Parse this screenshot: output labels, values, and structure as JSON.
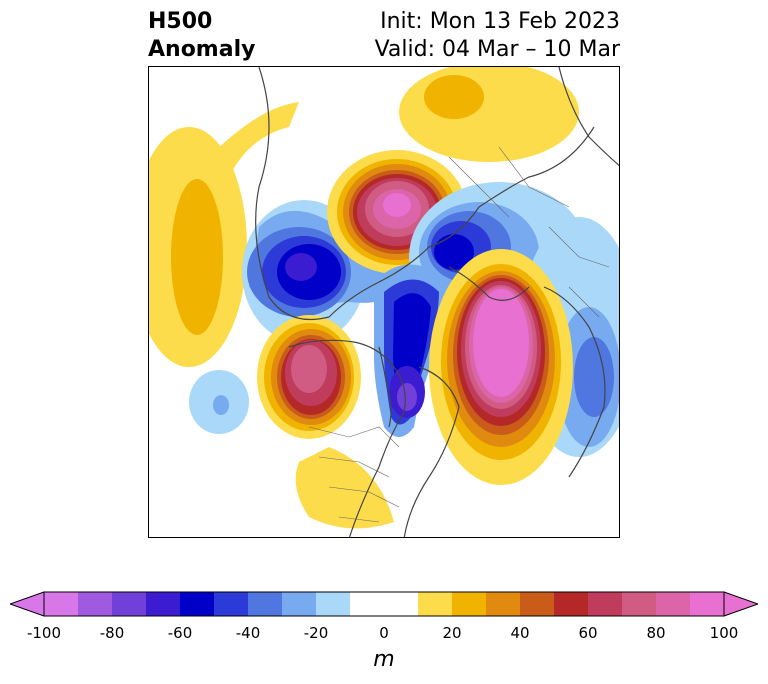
{
  "title": {
    "line1": "H500",
    "line2": "Anomaly"
  },
  "init": "Init: Mon 13 Feb 2023",
  "valid": "Valid: 04 Mar – 10 Mar",
  "colorbar": {
    "unit": "m",
    "ticks": [
      -100,
      -80,
      -60,
      -40,
      -20,
      0,
      20,
      40,
      60,
      80,
      100
    ],
    "bins": [
      -100,
      -90,
      -80,
      -70,
      -60,
      -50,
      -40,
      -30,
      -20,
      -10,
      10,
      20,
      30,
      40,
      50,
      60,
      70,
      80,
      90,
      100
    ],
    "colors": [
      "#d878e8",
      "#a05ae0",
      "#7040d8",
      "#3c1cd0",
      "#0000c8",
      "#2c3ad8",
      "#5076e0",
      "#78aaf0",
      "#aad8f8",
      "#ffffff",
      "#fcdc4a",
      "#f0b400",
      "#e08a10",
      "#c85c18",
      "#b42828",
      "#c03c5c",
      "#d05c84",
      "#dc64a8",
      "#e870d0"
    ],
    "under_color": "#d878e8",
    "over_color": "#e870d0"
  },
  "map": {
    "projection": "north-polar-stereographic"
  }
}
